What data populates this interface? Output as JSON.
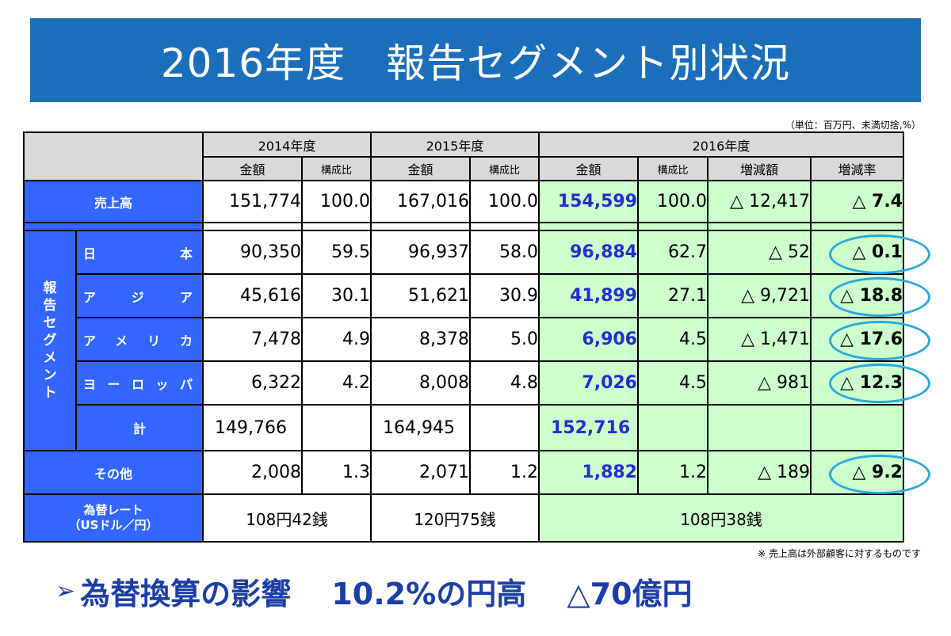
{
  "title": "2016年度　報告セグメント別状況",
  "unit_note": "（単位：百万円、未満切捨,%）",
  "table": {
    "years": [
      "2014年度",
      "2015年度",
      "2016年度"
    ],
    "col_headers": {
      "amount": "金額",
      "ratio": "構成比",
      "change_amount": "増減額",
      "change_rate": "増減率"
    },
    "sales": {
      "label": "売上高",
      "y2014_amount": "151,774",
      "y2014_ratio": "100.0",
      "y2015_amount": "167,016",
      "y2015_ratio": "100.0",
      "y2016_amount": "154,599",
      "y2016_ratio": "100.0",
      "change_amount": "△ 12,417",
      "change_rate": "△ 7.4"
    },
    "segment_group_label": "報告セグメント",
    "segments": [
      {
        "label": "日本",
        "y2014_amount": "90,350",
        "y2014_ratio": "59.5",
        "y2015_amount": "96,937",
        "y2015_ratio": "58.0",
        "y2016_amount": "96,884",
        "y2016_ratio": "62.7",
        "change_amount": "△ 52",
        "change_rate": "△ 0.1"
      },
      {
        "label": "アジア",
        "y2014_amount": "45,616",
        "y2014_ratio": "30.1",
        "y2015_amount": "51,621",
        "y2015_ratio": "30.9",
        "y2016_amount": "41,899",
        "y2016_ratio": "27.1",
        "change_amount": "△ 9,721",
        "change_rate": "△ 18.8"
      },
      {
        "label": "アメリカ",
        "y2014_amount": "7,478",
        "y2014_ratio": "4.9",
        "y2015_amount": "8,378",
        "y2015_ratio": "5.0",
        "y2016_amount": "6,906",
        "y2016_ratio": "4.5",
        "change_amount": "△ 1,471",
        "change_rate": "△ 17.6"
      },
      {
        "label": "ヨーロッパ",
        "y2014_amount": "6,322",
        "y2014_ratio": "4.2",
        "y2015_amount": "8,008",
        "y2015_ratio": "4.8",
        "y2016_amount": "7,026",
        "y2016_ratio": "4.5",
        "change_amount": "△ 981",
        "change_rate": "△ 12.3"
      }
    ],
    "segment_total": {
      "label": "計",
      "y2014_amount": "149,766",
      "y2015_amount": "164,945",
      "y2016_amount": "152,716"
    },
    "other": {
      "label": "その他",
      "y2014_amount": "2,008",
      "y2014_ratio": "1.3",
      "y2015_amount": "2,071",
      "y2015_ratio": "1.2",
      "y2016_amount": "1,882",
      "y2016_ratio": "1.2",
      "change_amount": "△ 189",
      "change_rate": "△ 9.2"
    },
    "fx": {
      "label_line1": "為替レート",
      "label_line2": "（USドル／円）",
      "y2014": "108円42銭",
      "y2015": "120円75銭",
      "y2016": "108円38銭"
    }
  },
  "footnote": "※ 売上高は外部顧客に対するものです",
  "conclusion": {
    "arrow": "➢",
    "text": "為替換算の影響　 10.2%の円高　 △70億円"
  },
  "colors": {
    "banner": "#1b6eba",
    "label_cell": "#3366ff",
    "header_cell": "#d9d9d9",
    "highlight_2016": "#ccffcc",
    "blue_number": "#1f2fd0",
    "circle": "#29a8e0",
    "conclusion_text": "#1b3fa6"
  }
}
